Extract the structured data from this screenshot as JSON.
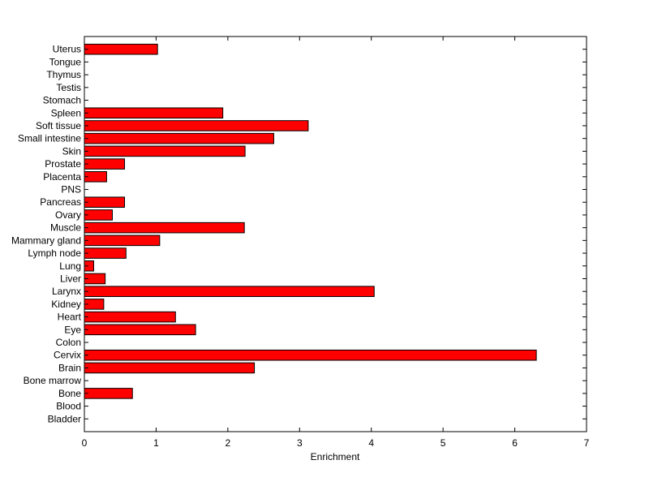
{
  "chart_data": {
    "type": "bar",
    "orientation": "horizontal",
    "title": "",
    "xlabel": "Enrichment",
    "ylabel": "",
    "xlim": [
      0,
      7
    ],
    "xticks": [
      "0",
      "1",
      "2",
      "3",
      "4",
      "5",
      "6",
      "7"
    ],
    "grid": false,
    "legend": "none",
    "bar_color": "#ff0000",
    "bar_edge_color": "#000000",
    "categories": [
      "Uterus",
      "Tongue",
      "Thymus",
      "Testis",
      "Stomach",
      "Spleen",
      "Soft tissue",
      "Small intestine",
      "Skin",
      "Prostate",
      "Placenta",
      "PNS",
      "Pancreas",
      "Ovary",
      "Muscle",
      "Mammary gland",
      "Lymph node",
      "Lung",
      "Liver",
      "Larynx",
      "Kidney",
      "Heart",
      "Eye",
      "Colon",
      "Cervix",
      "Brain",
      "Bone marrow",
      "Bone",
      "Blood",
      "Bladder"
    ],
    "values": [
      1.02,
      0,
      0,
      0,
      0,
      1.93,
      3.12,
      2.64,
      2.24,
      0.56,
      0.31,
      0,
      0.56,
      0.39,
      2.23,
      1.05,
      0.58,
      0.13,
      0.29,
      4.04,
      0.27,
      1.27,
      1.55,
      0,
      6.3,
      2.37,
      0,
      0.67,
      0,
      0
    ]
  }
}
